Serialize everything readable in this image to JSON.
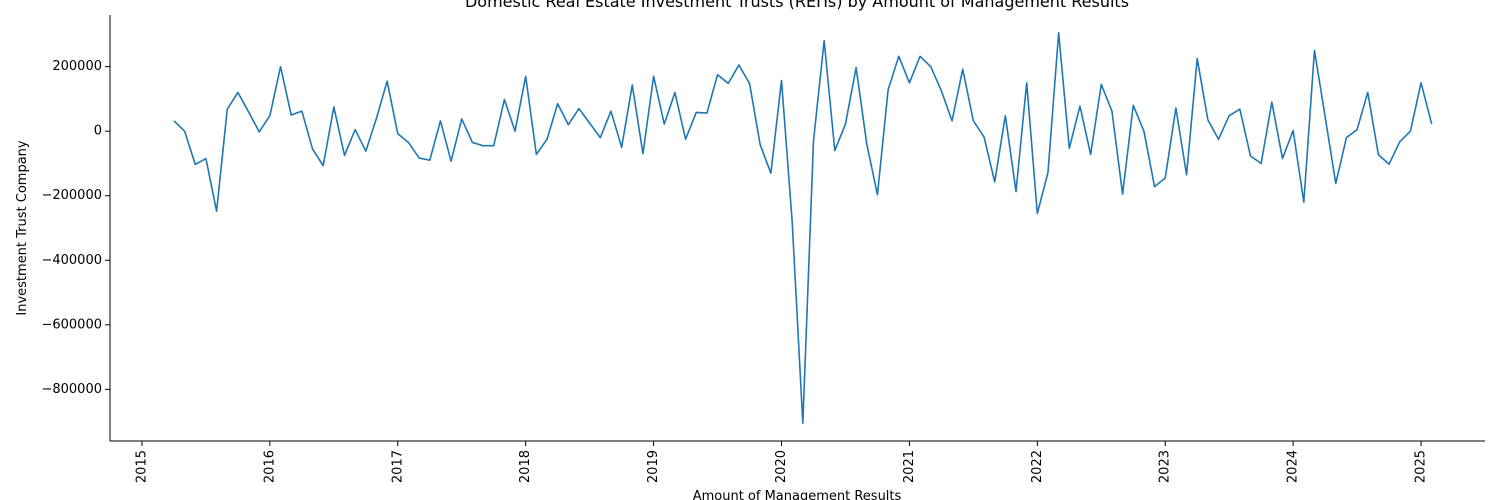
{
  "chart_data": {
    "type": "line",
    "title": "Domestic Real Estate Investment Trusts (REITs) by Amount of Management Results",
    "xlabel": "Amount of Management Results",
    "ylabel": "Investment Trust Company",
    "grid": false,
    "xlim": [
      "2014-10",
      "2025-07"
    ],
    "ylim": [
      -960000,
      360000
    ],
    "x_ticks": [
      "2015",
      "2016",
      "2017",
      "2018",
      "2019",
      "2020",
      "2021",
      "2022",
      "2023",
      "2024",
      "2025"
    ],
    "y_ticks": [
      200000,
      0,
      -200000,
      -400000,
      -600000,
      -800000
    ],
    "y_tick_labels": [
      "200000",
      "0",
      "−200000",
      "−400000",
      "−600000",
      "−800000"
    ],
    "series": [
      {
        "color": "#1f77b4",
        "x": [
          "2015-04",
          "2015-05",
          "2015-06",
          "2015-07",
          "2015-08",
          "2015-09",
          "2015-10",
          "2015-11",
          "2015-12",
          "2016-01",
          "2016-02",
          "2016-03",
          "2016-04",
          "2016-05",
          "2016-06",
          "2016-07",
          "2016-08",
          "2016-09",
          "2016-10",
          "2016-11",
          "2016-12",
          "2017-01",
          "2017-02",
          "2017-03",
          "2017-04",
          "2017-05",
          "2017-06",
          "2017-07",
          "2017-08",
          "2017-09",
          "2017-10",
          "2017-11",
          "2017-12",
          "2018-01",
          "2018-02",
          "2018-03",
          "2018-04",
          "2018-05",
          "2018-06",
          "2018-07",
          "2018-08",
          "2018-09",
          "2018-10",
          "2018-11",
          "2018-12",
          "2019-01",
          "2019-02",
          "2019-03",
          "2019-04",
          "2019-05",
          "2019-06",
          "2019-07",
          "2019-08",
          "2019-09",
          "2019-10",
          "2019-11",
          "2019-12",
          "2020-01",
          "2020-02",
          "2020-03",
          "2020-04",
          "2020-05",
          "2020-06",
          "2020-07",
          "2020-08",
          "2020-09",
          "2020-10",
          "2020-11",
          "2020-12",
          "2021-01",
          "2021-02",
          "2021-03",
          "2021-04",
          "2021-05",
          "2021-06",
          "2021-07",
          "2021-08",
          "2021-09",
          "2021-10",
          "2021-11",
          "2021-12",
          "2022-01",
          "2022-02",
          "2022-03",
          "2022-04",
          "2022-05",
          "2022-06",
          "2022-07",
          "2022-08",
          "2022-09",
          "2022-10",
          "2022-11",
          "2022-12",
          "2023-01",
          "2023-02",
          "2023-03",
          "2023-04",
          "2023-05",
          "2023-06",
          "2023-07",
          "2023-08",
          "2023-09",
          "2023-10",
          "2023-11",
          "2023-12",
          "2024-01",
          "2024-02",
          "2024-03",
          "2024-04",
          "2024-05",
          "2024-06",
          "2024-07",
          "2024-08",
          "2024-09",
          "2024-10",
          "2024-11",
          "2024-12",
          "2025-01",
          "2025-02"
        ],
        "values": [
          32000,
          0,
          -103000,
          -85000,
          -248000,
          68000,
          120000,
          60000,
          -2000,
          48000,
          200000,
          50000,
          62000,
          -55000,
          -107000,
          75000,
          -75000,
          5000,
          -62000,
          40000,
          155000,
          -8000,
          -35000,
          -83000,
          -90000,
          32000,
          -93000,
          38000,
          -35000,
          -45000,
          -45000,
          98000,
          0,
          170000,
          -72000,
          -25000,
          85000,
          20000,
          70000,
          25000,
          -20000,
          62000,
          -50000,
          143000,
          -70000,
          170000,
          22000,
          120000,
          -25000,
          58000,
          56000,
          175000,
          148000,
          205000,
          148000,
          -42000,
          -130000,
          157000,
          -280000,
          -905000,
          -30000,
          280000,
          -60000,
          22000,
          197000,
          -40000,
          -197000,
          128000,
          232000,
          150000,
          232000,
          200000,
          125000,
          32000,
          192000,
          32000,
          -18000,
          -157000,
          48000,
          -187000,
          150000,
          -255000,
          -128000,
          305000,
          -53000,
          78000,
          -72000,
          145000,
          62000,
          -195000,
          80000,
          0,
          -172000,
          -145000,
          72000,
          -135000,
          225000,
          35000,
          -25000,
          48000,
          68000,
          -77000,
          -100000,
          90000,
          -85000,
          2000,
          -220000,
          250000,
          45000,
          -162000,
          -20000,
          5000,
          120000,
          -73000,
          -102000,
          -33000,
          0,
          150000,
          22000
        ]
      }
    ]
  }
}
